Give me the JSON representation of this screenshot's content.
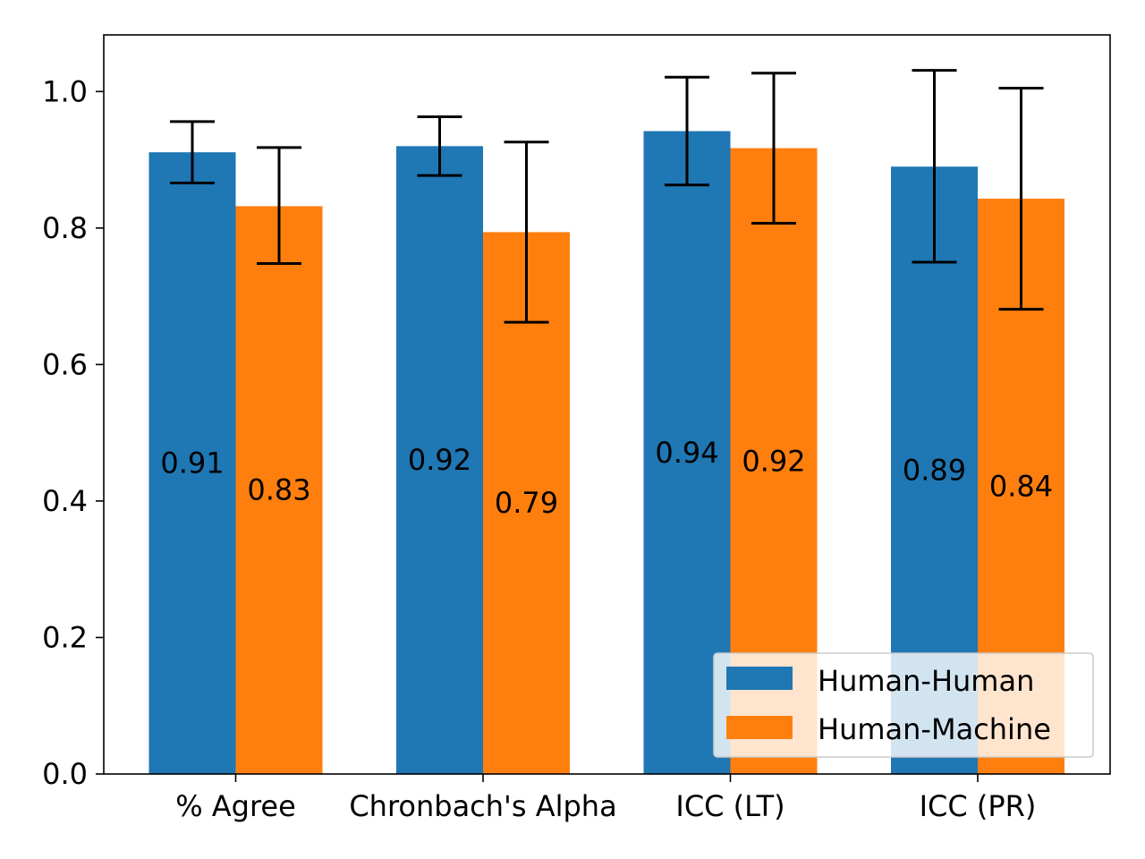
{
  "chart_data": {
    "type": "bar",
    "categories": [
      "% Agree",
      "Chronbach's Alpha",
      "ICC (LT)",
      "ICC (PR)"
    ],
    "series": [
      {
        "name": "Human-Human",
        "color": "#1f77b4",
        "values": [
          0.911,
          0.92,
          0.942,
          0.89
        ],
        "labels": [
          "0.91",
          "0.92",
          "0.94",
          "0.89"
        ],
        "error_low": [
          0.866,
          0.877,
          0.863,
          0.75
        ],
        "error_high": [
          0.956,
          0.963,
          1.021,
          1.031
        ]
      },
      {
        "name": "Human-Machine",
        "color": "#ff7f0e",
        "values": [
          0.832,
          0.794,
          0.917,
          0.843
        ],
        "labels": [
          "0.83",
          "0.79",
          "0.92",
          "0.84"
        ],
        "error_low": [
          0.748,
          0.662,
          0.807,
          0.681
        ],
        "error_high": [
          0.918,
          0.926,
          1.027,
          1.005
        ]
      }
    ],
    "yticks": [
      "0.0",
      "0.2",
      "0.4",
      "0.6",
      "0.8",
      "1.0"
    ],
    "ylim": [
      0,
      1.083
    ],
    "legend_position": "lower-right",
    "grid": false,
    "title": "",
    "xlabel": "",
    "ylabel": ""
  }
}
